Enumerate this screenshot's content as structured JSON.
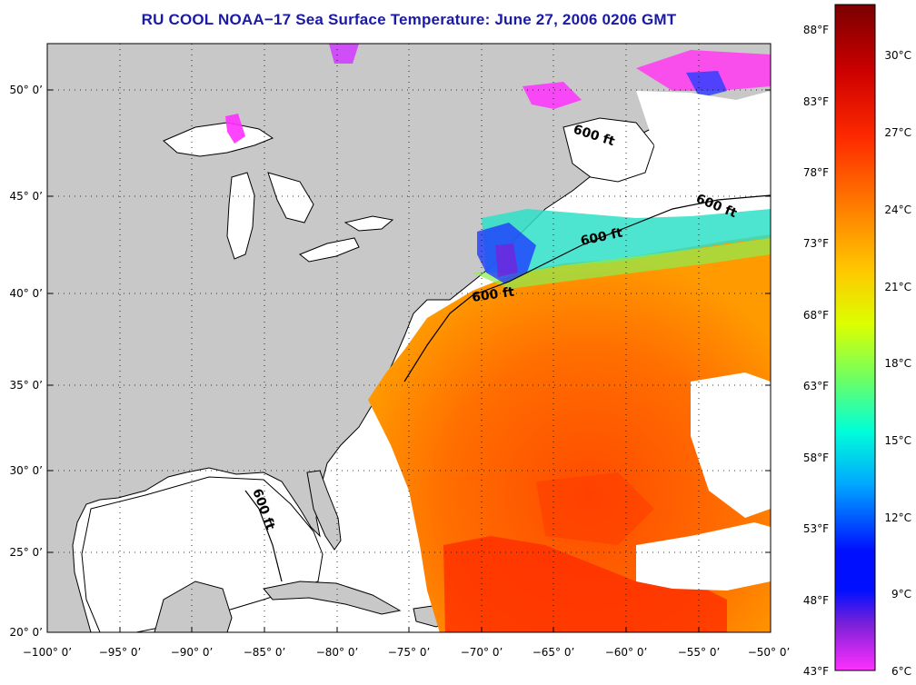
{
  "title": "RU COOL  NOAA−17  Sea Surface Temperature:  June 27, 2006 0206 GMT",
  "map": {
    "lat_labels": [
      "50° 0’",
      "45° 0’",
      "40° 0’",
      "35° 0’",
      "30° 0’",
      "25° 0’",
      "20° 0’"
    ],
    "lon_labels": [
      "−100° 0’",
      "−95° 0’",
      "−90° 0’",
      "−85° 0’",
      "−80° 0’",
      "−75° 0’",
      "−70° 0’",
      "−65° 0’",
      "−60° 0’",
      "−55° 0’",
      "−50° 0’"
    ],
    "contour_label": "600 ft",
    "land_color": "#c8c8c8",
    "ocean_no_data_color": "#ffffff"
  },
  "colorbar": {
    "fahrenheit_labels": [
      "88°F",
      "83°F",
      "78°F",
      "73°F",
      "68°F",
      "63°F",
      "58°F",
      "53°F",
      "48°F",
      "43°F"
    ],
    "celsius_labels": [
      "30°C",
      "27°C",
      "24°C",
      "21°C",
      "18°C",
      "15°C",
      "12°C",
      "9°C",
      "6°C"
    ],
    "colors_top_to_bottom": [
      "#7a0000",
      "#cc0000",
      "#ff2a00",
      "#ff7a00",
      "#ffc800",
      "#dcff00",
      "#70ff60",
      "#00ffd8",
      "#00a8ff",
      "#0010ff",
      "#7a20d8",
      "#ff30ff"
    ]
  }
}
